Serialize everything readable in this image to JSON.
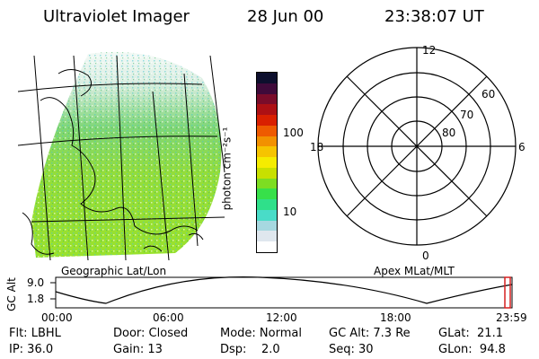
{
  "header": {
    "instrument": "Ultraviolet Imager",
    "date": "28 Jun 00",
    "time": "23:38:07 UT"
  },
  "colorbar": {
    "unit_label": "photon cm⁻²s⁻¹",
    "ticks": [
      "100",
      "10"
    ],
    "colors": [
      "#ffffff",
      "#dfe7ee",
      "#a6d8e0",
      "#49dcc8",
      "#2fe08a",
      "#37e04a",
      "#7ddd22",
      "#c8e000",
      "#f5ec00",
      "#f6c400",
      "#f29100",
      "#ee5a00",
      "#d92000",
      "#ad1014",
      "#7a0c2a",
      "#3f0a3a",
      "#0d0f2d"
    ]
  },
  "map_left": {
    "caption": "Geographic Lat/Lon"
  },
  "polar": {
    "caption": "Apex MLat/MLT",
    "hour_labels": [
      "12",
      "18",
      "6",
      "0"
    ],
    "lat_labels": [
      "60",
      "70",
      "80"
    ]
  },
  "altitude_plot": {
    "ylabel": "GC Alt",
    "y_ticks": [
      "9.0",
      "1.8"
    ],
    "x_ticks": [
      "00:00",
      "06:00",
      "12:00",
      "18:00",
      "23:59"
    ],
    "marker_color": "#d62020"
  },
  "info": {
    "flt": "Flt: LBHL",
    "ip": "IP: 36.0",
    "door": "Door: Closed",
    "gain": "Gain: 13",
    "mode": "Mode: Normal",
    "dsp": "Dsp:    2.0",
    "gcalt": "GC Alt: 7.3 Re",
    "seq": "Seq: 30",
    "glat": "GLat:  21.1",
    "glon": "GLon:  94.8"
  }
}
